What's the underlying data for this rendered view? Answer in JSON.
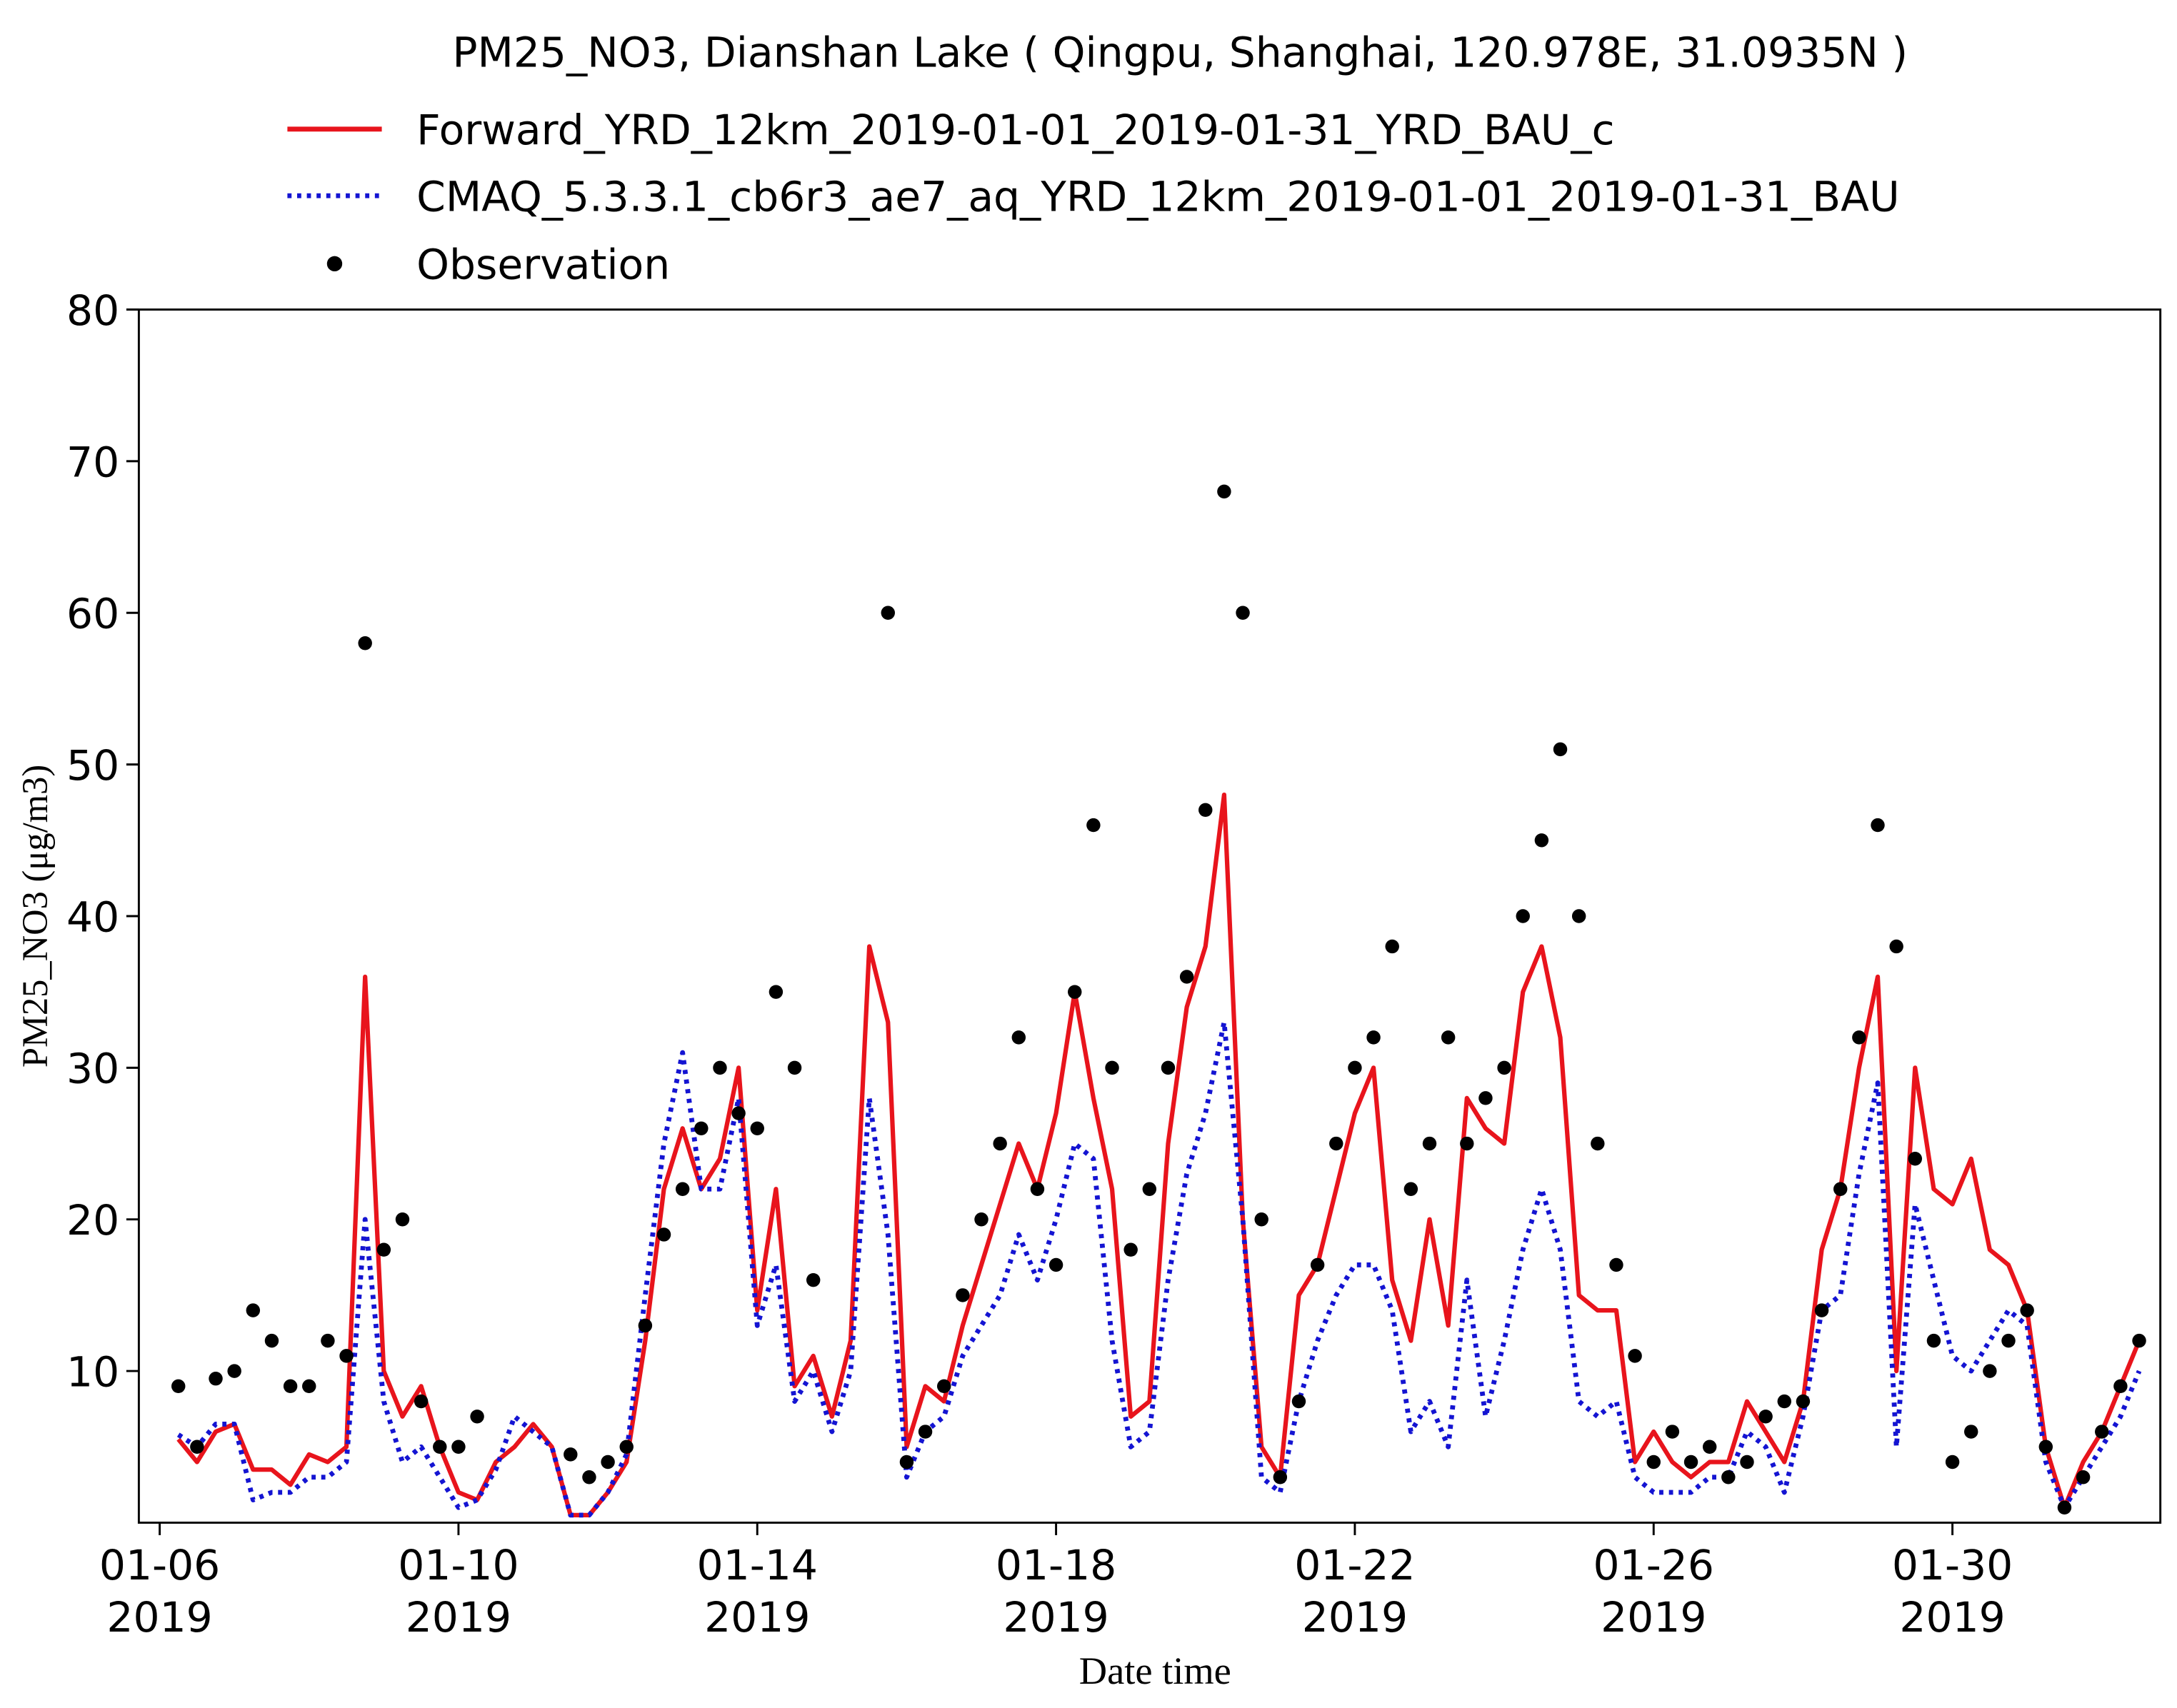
{
  "chart_data": {
    "type": "line",
    "title": "PM25_NO3, Dianshan Lake ( Qingpu, Shanghai,  120.978E, 31.0935N )",
    "xlabel": "Date time",
    "ylabel": "PM25_NO3 (μg/m3)",
    "legend": "top",
    "xlim": [
      "2019-01-05T17:18",
      "2019-02-01T18:48"
    ],
    "xticks": [
      {
        "value": "2019-01-06T00:00",
        "label": "01-06\n2019"
      },
      {
        "value": "2019-01-10T00:00",
        "label": "01-10\n2019"
      },
      {
        "value": "2019-01-14T00:00",
        "label": "01-14\n2019"
      },
      {
        "value": "2019-01-18T00:00",
        "label": "01-18\n2019"
      },
      {
        "value": "2019-01-22T00:00",
        "label": "01-22\n2019"
      },
      {
        "value": "2019-01-26T00:00",
        "label": "01-26\n2019"
      },
      {
        "value": "2019-01-30T00:00",
        "label": "01-30\n2019"
      }
    ],
    "ylim": [
      0,
      80
    ],
    "yticks": [
      10,
      20,
      30,
      40,
      50,
      60,
      70,
      80
    ],
    "x": [
      "2019-01-06T06:00",
      "2019-01-06T12:00",
      "2019-01-06T18:00",
      "2019-01-07T00:00",
      "2019-01-07T06:00",
      "2019-01-07T12:00",
      "2019-01-07T18:00",
      "2019-01-08T00:00",
      "2019-01-08T06:00",
      "2019-01-08T12:00",
      "2019-01-08T18:00",
      "2019-01-09T00:00",
      "2019-01-09T06:00",
      "2019-01-09T12:00",
      "2019-01-09T18:00",
      "2019-01-10T00:00",
      "2019-01-10T06:00",
      "2019-01-10T12:00",
      "2019-01-10T18:00",
      "2019-01-11T00:00",
      "2019-01-11T06:00",
      "2019-01-11T12:00",
      "2019-01-11T18:00",
      "2019-01-12T00:00",
      "2019-01-12T06:00",
      "2019-01-12T12:00",
      "2019-01-12T18:00",
      "2019-01-13T00:00",
      "2019-01-13T06:00",
      "2019-01-13T12:00",
      "2019-01-13T18:00",
      "2019-01-14T00:00",
      "2019-01-14T06:00",
      "2019-01-14T12:00",
      "2019-01-14T18:00",
      "2019-01-15T00:00",
      "2019-01-15T06:00",
      "2019-01-15T12:00",
      "2019-01-15T18:00",
      "2019-01-16T00:00",
      "2019-01-16T06:00",
      "2019-01-16T12:00",
      "2019-01-16T18:00",
      "2019-01-17T00:00",
      "2019-01-17T06:00",
      "2019-01-17T12:00",
      "2019-01-17T18:00",
      "2019-01-18T00:00",
      "2019-01-18T06:00",
      "2019-01-18T12:00",
      "2019-01-18T18:00",
      "2019-01-19T00:00",
      "2019-01-19T06:00",
      "2019-01-19T12:00",
      "2019-01-19T18:00",
      "2019-01-20T00:00",
      "2019-01-20T06:00",
      "2019-01-20T12:00",
      "2019-01-20T18:00",
      "2019-01-21T00:00",
      "2019-01-21T06:00",
      "2019-01-21T12:00",
      "2019-01-21T18:00",
      "2019-01-22T00:00",
      "2019-01-22T06:00",
      "2019-01-22T12:00",
      "2019-01-22T18:00",
      "2019-01-23T00:00",
      "2019-01-23T06:00",
      "2019-01-23T12:00",
      "2019-01-23T18:00",
      "2019-01-24T00:00",
      "2019-01-24T06:00",
      "2019-01-24T12:00",
      "2019-01-24T18:00",
      "2019-01-25T00:00",
      "2019-01-25T06:00",
      "2019-01-25T12:00",
      "2019-01-25T18:00",
      "2019-01-26T00:00",
      "2019-01-26T06:00",
      "2019-01-26T12:00",
      "2019-01-26T18:00",
      "2019-01-27T00:00",
      "2019-01-27T06:00",
      "2019-01-27T12:00",
      "2019-01-27T18:00",
      "2019-01-28T00:00",
      "2019-01-28T06:00",
      "2019-01-28T12:00",
      "2019-01-28T18:00",
      "2019-01-29T00:00",
      "2019-01-29T06:00",
      "2019-01-29T12:00",
      "2019-01-29T18:00",
      "2019-01-30T00:00",
      "2019-01-30T06:00",
      "2019-01-30T12:00",
      "2019-01-30T18:00",
      "2019-01-31T00:00",
      "2019-01-31T06:00",
      "2019-01-31T12:00",
      "2019-01-31T18:00",
      "2019-02-01T00:00",
      "2019-02-01T06:00",
      "2019-02-01T12:00"
    ],
    "series": [
      {
        "name": "Forward_YRD_12km_2019-01-01_2019-01-31_YRD_BAU_c",
        "color": "#e8141c",
        "style": "solid",
        "values": [
          5.5,
          4,
          6,
          6.5,
          3.5,
          3.5,
          2.5,
          4.5,
          4,
          5,
          36,
          10,
          7,
          9,
          5,
          2,
          1.5,
          4,
          5,
          6.5,
          5,
          0.5,
          0.5,
          2,
          4,
          12,
          22,
          26,
          22,
          24,
          30,
          14,
          22,
          9,
          11,
          7,
          12,
          38,
          33,
          5,
          9,
          8,
          13,
          17,
          21,
          25,
          22,
          27,
          35,
          28,
          22,
          7,
          8,
          25,
          34,
          38,
          48,
          20,
          5,
          3,
          15,
          17,
          22,
          27,
          30,
          16,
          12,
          20,
          13,
          28,
          26,
          25,
          35,
          38,
          32,
          15,
          14,
          14,
          4,
          6,
          4,
          3,
          4,
          4,
          8,
          6,
          4,
          8,
          18,
          22,
          30,
          36,
          10,
          30,
          22,
          21,
          24,
          18,
          17,
          14,
          5,
          1,
          4,
          6,
          9,
          12
        ]
      },
      {
        "name": "CMAQ_5.3.3.1_cb6r3_ae7_aq_YRD_12km_2019-01-01_2019-01-31_BAU",
        "color": "#1414d2",
        "style": "dotted",
        "values": [
          5.8,
          5,
          6.5,
          6.5,
          1.5,
          2,
          2,
          3,
          3,
          4,
          20,
          8,
          4,
          5,
          3,
          1,
          1.5,
          3.5,
          7,
          6,
          5,
          0.5,
          0.5,
          2,
          4.5,
          15,
          25,
          31,
          22,
          22,
          28,
          13,
          17,
          8,
          10,
          6,
          10,
          28,
          19,
          3,
          6,
          7,
          11,
          13,
          15,
          19,
          16,
          20,
          25,
          24,
          12,
          5,
          6,
          16,
          23,
          27,
          33,
          20,
          3,
          2,
          8,
          12,
          15,
          17,
          17,
          14,
          6,
          8,
          5,
          16,
          7,
          12,
          18,
          22,
          18,
          8,
          7,
          8,
          3,
          2,
          2,
          2,
          3,
          3,
          6,
          5,
          2,
          7,
          14,
          15,
          23,
          29,
          5,
          21,
          16,
          11,
          10,
          12,
          14,
          13,
          4,
          1,
          3,
          5,
          7,
          10
        ]
      },
      {
        "name": "Observation",
        "color": "#000000",
        "style": "markers",
        "values": [
          9,
          5,
          9.5,
          10,
          14,
          12,
          9,
          9,
          12,
          11,
          58,
          18,
          20,
          8,
          5,
          5,
          7,
          null,
          null,
          null,
          null,
          4.5,
          3,
          4,
          5,
          13,
          19,
          22,
          26,
          30,
          27,
          26,
          35,
          30,
          16,
          null,
          null,
          null,
          60,
          4,
          6,
          9,
          15,
          20,
          25,
          32,
          22,
          17,
          35,
          46,
          30,
          18,
          22,
          30,
          36,
          47,
          68,
          60,
          20,
          3,
          8,
          17,
          25,
          30,
          32,
          38,
          22,
          25,
          32,
          25,
          28,
          30,
          40,
          45,
          51,
          40,
          25,
          17,
          11,
          4,
          6,
          4,
          5,
          3,
          4,
          7,
          8,
          8,
          14,
          22,
          32,
          46,
          38,
          24,
          12,
          4,
          6,
          10,
          12,
          14,
          5,
          1,
          3,
          6,
          9,
          12
        ]
      }
    ]
  }
}
